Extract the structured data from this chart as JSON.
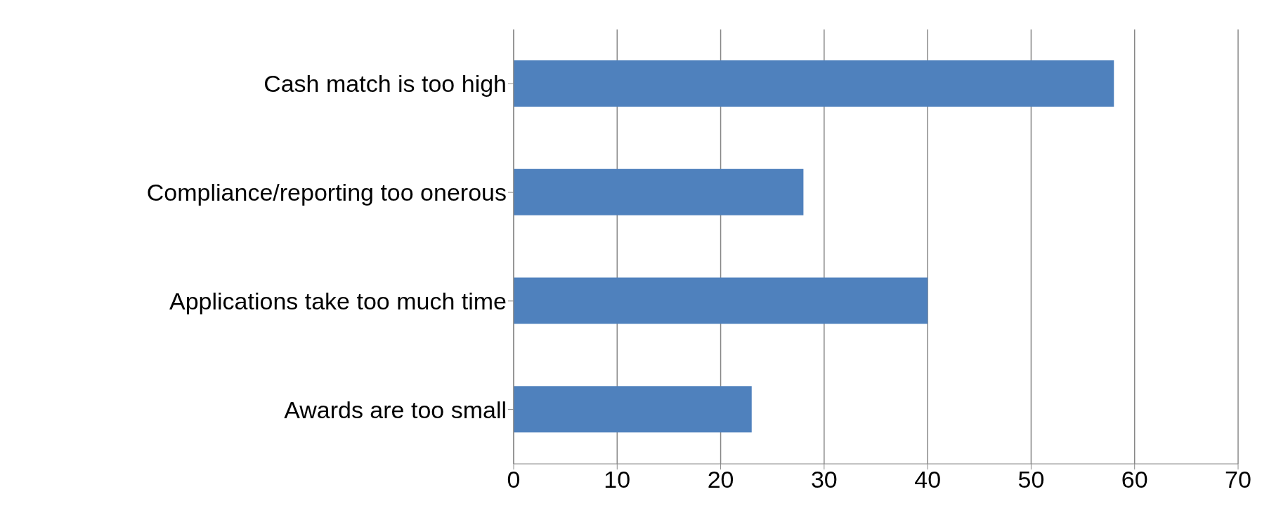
{
  "chart_data": {
    "type": "bar",
    "orientation": "horizontal",
    "categories": [
      "Cash match is too high",
      "Compliance/reporting too onerous",
      "Applications take too much time",
      "Awards are too small"
    ],
    "values": [
      58,
      28,
      40,
      23
    ],
    "color": "#4f81bd",
    "xlim": [
      0,
      70
    ],
    "xticks": [
      0,
      10,
      20,
      30,
      40,
      50,
      60,
      70
    ],
    "grid": "x"
  }
}
